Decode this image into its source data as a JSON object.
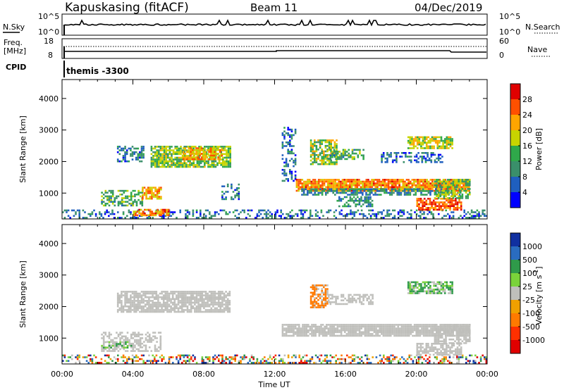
{
  "header": {
    "station": "Kapuskasing (fitACF)",
    "beam": "Beam 11",
    "date": "04/Dec/2019"
  },
  "noise_panel": {
    "left_label": "N.Sky",
    "right_label": "N.Search",
    "ticks_left": [
      "10^5",
      "10^0"
    ],
    "ticks_right": [
      "10^5",
      "10^0"
    ]
  },
  "freq_panel": {
    "left_label_1": "Freq.",
    "left_label_2": "[MHz]",
    "right_label": "Nave",
    "ticks_left": [
      "18",
      "8"
    ],
    "ticks_right": [
      "60",
      "0"
    ]
  },
  "cpid": {
    "label": "CPID",
    "value": "themis -3300"
  },
  "colors": {
    "power_scale": [
      "#0000ff",
      "#1f5fbf",
      "#3a8f6a",
      "#2fa84a",
      "#c8d400",
      "#ffa500",
      "#ff5000",
      "#e00000"
    ],
    "velocity_scale": [
      "#1030a0",
      "#2a6cc0",
      "#2f9a4a",
      "#7ad33a",
      "#bfbfbb",
      "#f0a000",
      "#ff7a00",
      "#ff3000",
      "#e00000"
    ],
    "ground_scatter": "#bfbfbb"
  },
  "chart_data": [
    {
      "type": "heatmap",
      "panel": "power",
      "xlabel": "",
      "ylabel": "Slant Range [km]",
      "x_ticks": [
        "00:00",
        "04:00",
        "08:00",
        "12:00",
        "16:00",
        "20:00",
        "00:00"
      ],
      "xlim_hours": [
        0,
        24
      ],
      "y_ticks": [
        "1000",
        "2000",
        "3000",
        "4000"
      ],
      "ylim": [
        180,
        4600
      ],
      "colorbar": {
        "label": "Power [dB]",
        "ticks": [
          "4",
          "8",
          "12",
          "16",
          "20",
          "24",
          "28"
        ],
        "range": [
          0,
          30
        ]
      },
      "regions": [
        {
          "t0": 0.0,
          "t1": 24.0,
          "r0": 200,
          "r1": 480,
          "value": 7,
          "density": 0.35
        },
        {
          "t0": 4.0,
          "t1": 6.0,
          "r0": 320,
          "r1": 500,
          "value": 22,
          "density": 0.75
        },
        {
          "t0": 3.1,
          "t1": 4.6,
          "r0": 2000,
          "r1": 2500,
          "value": 8,
          "density": 0.55
        },
        {
          "t0": 5.0,
          "t1": 9.5,
          "r0": 1850,
          "r1": 2500,
          "value": 14,
          "density": 0.8
        },
        {
          "t0": 6.8,
          "t1": 9.0,
          "r0": 2100,
          "r1": 2450,
          "value": 20,
          "density": 0.65
        },
        {
          "t0": 2.2,
          "t1": 4.5,
          "r0": 600,
          "r1": 1100,
          "value": 12,
          "density": 0.55
        },
        {
          "t0": 4.5,
          "t1": 5.6,
          "r0": 800,
          "r1": 1200,
          "value": 20,
          "density": 0.75
        },
        {
          "t0": 9.0,
          "t1": 10.0,
          "r0": 800,
          "r1": 1300,
          "value": 7,
          "density": 0.4
        },
        {
          "t0": 12.4,
          "t1": 13.2,
          "r0": 1400,
          "r1": 3100,
          "value": 7,
          "density": 0.35
        },
        {
          "t0": 13.2,
          "t1": 23.0,
          "r0": 1100,
          "r1": 1450,
          "value": 22,
          "density": 0.9
        },
        {
          "t0": 13.5,
          "t1": 22.5,
          "r0": 950,
          "r1": 1150,
          "value": 9,
          "density": 0.6
        },
        {
          "t0": 14.0,
          "t1": 15.5,
          "r0": 1900,
          "r1": 2700,
          "value": 15,
          "density": 0.7
        },
        {
          "t0": 15.0,
          "t1": 17.0,
          "r0": 2100,
          "r1": 2400,
          "value": 12,
          "density": 0.55
        },
        {
          "t0": 15.5,
          "t1": 17.5,
          "r0": 600,
          "r1": 900,
          "value": 10,
          "density": 0.5
        },
        {
          "t0": 18.0,
          "t1": 21.5,
          "r0": 2000,
          "r1": 2300,
          "value": 7,
          "density": 0.45
        },
        {
          "t0": 19.5,
          "t1": 22.0,
          "r0": 2400,
          "r1": 2800,
          "value": 17,
          "density": 0.75
        },
        {
          "t0": 20.0,
          "t1": 22.5,
          "r0": 500,
          "r1": 850,
          "value": 24,
          "density": 0.75
        },
        {
          "t0": 21.0,
          "t1": 23.0,
          "r0": 850,
          "r1": 1450,
          "value": 14,
          "density": 0.65
        }
      ]
    },
    {
      "type": "heatmap",
      "panel": "velocity",
      "xlabel": "Time UT",
      "ylabel": "Slant Range [km]",
      "x_ticks": [
        "00:00",
        "04:00",
        "08:00",
        "12:00",
        "16:00",
        "20:00",
        "00:00"
      ],
      "xlim_hours": [
        0,
        24
      ],
      "y_ticks": [
        "1000",
        "2000",
        "3000",
        "4000"
      ],
      "ylim": [
        180,
        4600
      ],
      "colorbar": {
        "label": "Velocity [m s^-1]",
        "ticks": [
          "1000",
          "500",
          "100",
          "25",
          "-25",
          "-100",
          "-500",
          "-1000"
        ]
      },
      "regions": [
        {
          "t0": 0.0,
          "t1": 24.0,
          "r0": 200,
          "r1": 480,
          "value": "mixed",
          "density": 0.4
        },
        {
          "t0": 3.1,
          "t1": 9.5,
          "r0": 1850,
          "r1": 2500,
          "value": "ground",
          "density": 0.8
        },
        {
          "t0": 2.2,
          "t1": 5.6,
          "r0": 600,
          "r1": 1200,
          "value": "ground",
          "density": 0.55
        },
        {
          "t0": 2.2,
          "t1": 4.0,
          "r0": 700,
          "r1": 900,
          "value": 150,
          "density": 0.45
        },
        {
          "t0": 12.4,
          "t1": 23.0,
          "r0": 1100,
          "r1": 1450,
          "value": "ground",
          "density": 0.9
        },
        {
          "t0": 14.0,
          "t1": 15.0,
          "r0": 2000,
          "r1": 2700,
          "value": -400,
          "density": 0.7
        },
        {
          "t0": 15.0,
          "t1": 17.5,
          "r0": 2100,
          "r1": 2400,
          "value": "ground",
          "density": 0.55
        },
        {
          "t0": 19.5,
          "t1": 22.0,
          "r0": 2400,
          "r1": 2800,
          "value": 120,
          "density": 0.75
        },
        {
          "t0": 20.0,
          "t1": 22.5,
          "r0": 500,
          "r1": 850,
          "value": "ground",
          "density": 0.7
        },
        {
          "t0": 21.0,
          "t1": 23.0,
          "r0": 850,
          "r1": 1450,
          "value": "ground",
          "density": 0.65
        }
      ]
    }
  ]
}
